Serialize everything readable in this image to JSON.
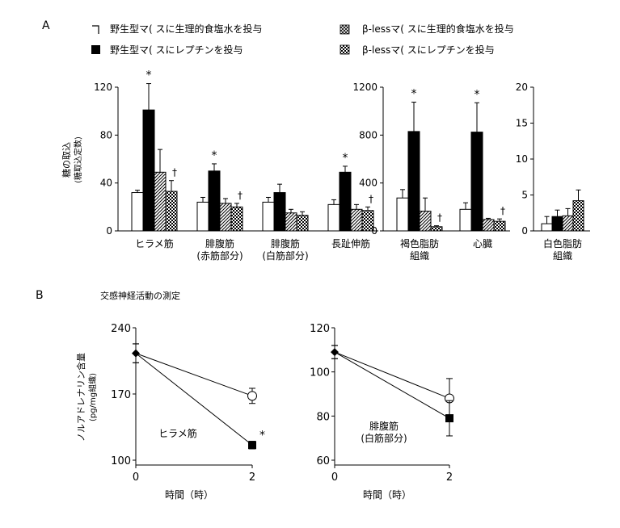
{
  "panel_labels": {
    "a": "A",
    "b": "B"
  },
  "legend": [
    {
      "label": "野生型マ( スに生理的食塩水を投与",
      "pattern": "white"
    },
    {
      "label": "β-lessマ( スに生理的食塩水を投与",
      "pattern": "checker_light"
    },
    {
      "label": "野生型マ( スにレプチンを投与",
      "pattern": "black"
    },
    {
      "label": "β-lessマ( スにレプチンを投与",
      "pattern": "checker_dark"
    }
  ],
  "ylabel_a": "糖の取込",
  "ylabel_a_sub": "(糖取込定数)",
  "section_b_title": "交感神経活動の測定",
  "ylabel_b": "ノルアドレナリン含量",
  "ylabel_b_sub": "(pg/mg組織)",
  "chart_data": [
    {
      "type": "bar",
      "panel": "A",
      "ylim": [
        0,
        120
      ],
      "yticks": [
        0,
        40,
        80,
        120
      ],
      "categories": [
        "ヒラメ筋",
        "腓腹筋\n(赤筋部分)",
        "腓腹筋\n(白筋部分)",
        "長趾伸筋"
      ],
      "series": [
        {
          "pattern": "white",
          "values": [
            32,
            24,
            24,
            22
          ],
          "errors": [
            2,
            4,
            4,
            4
          ]
        },
        {
          "pattern": "black",
          "values": [
            101,
            50,
            32,
            49
          ],
          "errors": [
            22,
            6,
            7,
            5
          ]
        },
        {
          "pattern": "diag",
          "values": [
            49,
            23,
            15,
            18
          ],
          "errors": [
            19,
            4,
            3,
            4
          ]
        },
        {
          "pattern": "checker",
          "values": [
            33,
            20,
            13,
            17
          ],
          "errors": [
            9,
            3,
            3,
            3
          ]
        }
      ],
      "annotations": [
        {
          "category": 0,
          "series": 1,
          "text": "*"
        },
        {
          "category": 0,
          "series": 3,
          "text": "†"
        },
        {
          "category": 1,
          "series": 1,
          "text": "*"
        },
        {
          "category": 1,
          "series": 3,
          "text": "†"
        },
        {
          "category": 3,
          "series": 1,
          "text": "*"
        },
        {
          "category": 3,
          "series": 3,
          "text": "†"
        }
      ]
    },
    {
      "type": "bar",
      "panel": "A",
      "ylim": [
        0,
        1200
      ],
      "yticks": [
        0,
        400,
        800,
        1200
      ],
      "categories": [
        "褐色脂肪\n組織",
        "心臓"
      ],
      "series": [
        {
          "pattern": "white",
          "values": [
            275,
            180
          ],
          "errors": [
            70,
            55
          ]
        },
        {
          "pattern": "black",
          "values": [
            830,
            825
          ],
          "errors": [
            245,
            245
          ]
        },
        {
          "pattern": "diag",
          "values": [
            165,
            95
          ],
          "errors": [
            110,
            10
          ]
        },
        {
          "pattern": "checker",
          "values": [
            35,
            80
          ],
          "errors": [
            8,
            20
          ]
        }
      ],
      "annotations": [
        {
          "category": 0,
          "series": 1,
          "text": "*"
        },
        {
          "category": 0,
          "series": 3,
          "text": "†"
        },
        {
          "category": 1,
          "series": 1,
          "text": "*"
        },
        {
          "category": 1,
          "series": 3,
          "text": "†"
        }
      ]
    },
    {
      "type": "bar",
      "panel": "A",
      "ylim": [
        0,
        20
      ],
      "yticks": [
        0,
        5,
        10,
        15,
        20
      ],
      "categories": [
        "白色脂肪\n組織"
      ],
      "series": [
        {
          "pattern": "white",
          "values": [
            1.0
          ],
          "errors": [
            1.0
          ]
        },
        {
          "pattern": "black",
          "values": [
            2.0
          ],
          "errors": [
            0.9
          ]
        },
        {
          "pattern": "diag",
          "values": [
            2.1
          ],
          "errors": [
            1.0
          ]
        },
        {
          "pattern": "checker",
          "values": [
            4.2
          ],
          "errors": [
            1.5
          ]
        }
      ],
      "annotations": []
    },
    {
      "type": "line",
      "panel": "B",
      "title": "ヒラメ筋",
      "x": [
        0,
        2
      ],
      "xlabel": "時間（時）",
      "ylim": [
        100,
        240
      ],
      "yticks": [
        100,
        170,
        240
      ],
      "xticks": [
        0,
        2
      ],
      "series": [
        {
          "marker": "open_circle",
          "values": [
            213,
            168
          ],
          "errors": [
            10,
            8
          ]
        },
        {
          "marker": "filled_square",
          "values": [
            213,
            116
          ],
          "errors": [
            10,
            4
          ]
        }
      ],
      "annotations": [
        {
          "x": 2,
          "y": 116,
          "text": "*"
        }
      ]
    },
    {
      "type": "line",
      "panel": "B",
      "title": "腓腹筋\n(白筋部分)",
      "x": [
        0,
        2
      ],
      "xlabel": "時間（時）",
      "ylim": [
        60,
        120
      ],
      "yticks": [
        60,
        80,
        100,
        120
      ],
      "xticks": [
        0,
        2
      ],
      "series": [
        {
          "marker": "open_circle",
          "values": [
            109,
            88
          ],
          "errors": [
            3,
            9
          ]
        },
        {
          "marker": "filled_square",
          "values": [
            109,
            79
          ],
          "errors": [
            3,
            8
          ]
        }
      ],
      "annotations": []
    }
  ]
}
